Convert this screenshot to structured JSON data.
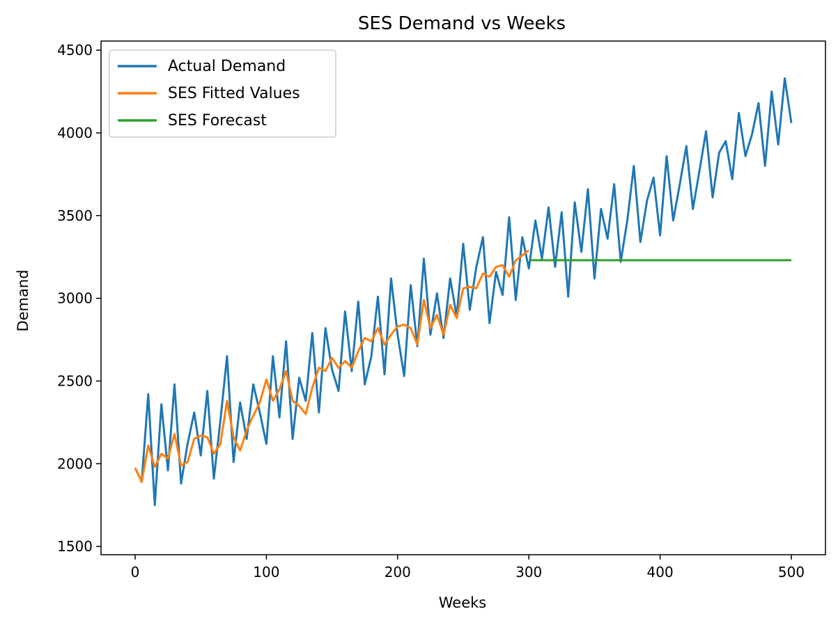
{
  "chart_data": {
    "type": "line",
    "title": "SES Demand vs Weeks",
    "xlabel": "Weeks",
    "ylabel": "Demand",
    "xlim": [
      -26,
      526
    ],
    "ylim": [
      1450,
      4555
    ],
    "xticks": [
      0,
      100,
      200,
      300,
      400,
      500
    ],
    "yticks": [
      1500,
      2000,
      2500,
      3000,
      3500,
      4000,
      4500
    ],
    "grid": false,
    "legend_position": "upper-left",
    "series": [
      {
        "name": "Actual Demand",
        "color": "#1f77b4",
        "x": [
          0,
          5,
          10,
          15,
          20,
          25,
          30,
          35,
          40,
          45,
          50,
          55,
          60,
          65,
          70,
          75,
          80,
          85,
          90,
          95,
          100,
          105,
          110,
          115,
          120,
          125,
          130,
          135,
          140,
          145,
          150,
          155,
          160,
          165,
          170,
          175,
          180,
          185,
          190,
          195,
          200,
          205,
          210,
          215,
          220,
          225,
          230,
          235,
          240,
          245,
          250,
          255,
          260,
          265,
          270,
          275,
          280,
          285,
          290,
          295,
          300,
          305,
          310,
          315,
          320,
          325,
          330,
          335,
          340,
          345,
          350,
          355,
          360,
          365,
          370,
          375,
          380,
          385,
          390,
          395,
          400,
          405,
          410,
          415,
          420,
          425,
          430,
          435,
          440,
          445,
          450,
          455,
          460,
          465,
          470,
          475,
          480,
          485,
          490,
          495,
          500
        ],
        "values": [
          1975,
          1890,
          2420,
          1750,
          2360,
          1960,
          2480,
          1880,
          2120,
          2310,
          2050,
          2440,
          1910,
          2260,
          2650,
          2010,
          2370,
          2150,
          2480,
          2310,
          2120,
          2650,
          2280,
          2740,
          2150,
          2520,
          2380,
          2790,
          2310,
          2820,
          2570,
          2440,
          2920,
          2560,
          2980,
          2480,
          2650,
          3010,
          2540,
          3120,
          2780,
          2530,
          3080,
          2710,
          3240,
          2780,
          3030,
          2760,
          3120,
          2890,
          3330,
          2930,
          3190,
          3370,
          2850,
          3160,
          3020,
          3490,
          2990,
          3370,
          3180,
          3470,
          3240,
          3550,
          3190,
          3520,
          3010,
          3580,
          3280,
          3660,
          3120,
          3540,
          3360,
          3690,
          3220,
          3470,
          3800,
          3340,
          3590,
          3730,
          3380,
          3860,
          3470,
          3690,
          3920,
          3540,
          3770,
          4010,
          3610,
          3880,
          3950,
          3720,
          4120,
          3860,
          3990,
          4180,
          3800,
          4250,
          3930,
          4330,
          4060
        ]
      },
      {
        "name": "SES Fitted Values",
        "color": "#ff7f0e",
        "x": [
          0,
          5,
          10,
          15,
          20,
          25,
          30,
          35,
          40,
          45,
          50,
          55,
          60,
          65,
          70,
          75,
          80,
          85,
          90,
          95,
          100,
          105,
          110,
          115,
          120,
          125,
          130,
          135,
          140,
          145,
          150,
          155,
          160,
          165,
          170,
          175,
          180,
          185,
          190,
          195,
          200,
          205,
          210,
          215,
          220,
          225,
          230,
          235,
          240,
          245,
          250,
          255,
          260,
          265,
          270,
          275,
          280,
          285,
          290,
          295,
          300
        ],
        "values": [
          1975,
          1890,
          2110,
          1980,
          2060,
          2030,
          2180,
          1990,
          2010,
          2150,
          2170,
          2160,
          2060,
          2120,
          2380,
          2160,
          2080,
          2200,
          2290,
          2370,
          2510,
          2380,
          2450,
          2560,
          2380,
          2350,
          2300,
          2460,
          2580,
          2560,
          2640,
          2580,
          2620,
          2580,
          2680,
          2760,
          2740,
          2820,
          2720,
          2780,
          2830,
          2840,
          2820,
          2720,
          2990,
          2820,
          2900,
          2780,
          2960,
          2880,
          3060,
          3070,
          3060,
          3150,
          3130,
          3190,
          3200,
          3130,
          3230,
          3260,
          3290
        ]
      },
      {
        "name": "SES Forecast",
        "color": "#2ca02c",
        "x": [
          301,
          500
        ],
        "values": [
          3230,
          3230
        ]
      }
    ]
  }
}
